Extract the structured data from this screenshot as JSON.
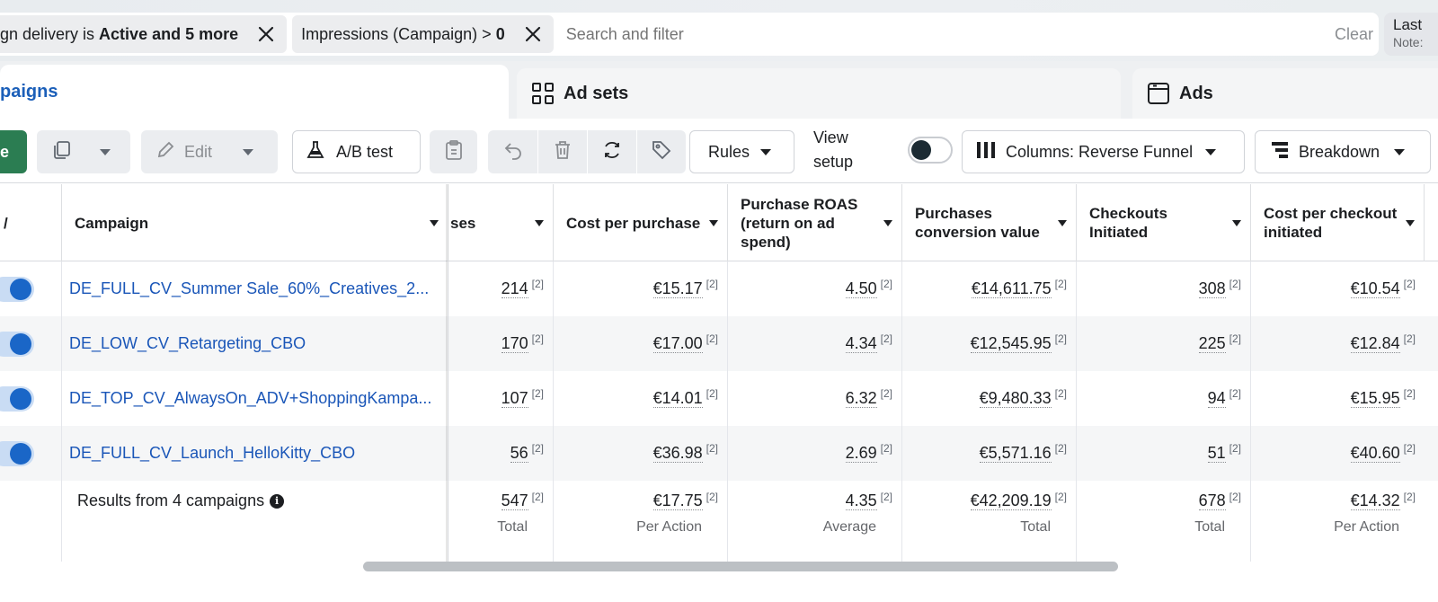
{
  "filters": {
    "chips": [
      {
        "prefix": "gn delivery is",
        "bold": "Active and 5 more"
      },
      {
        "prefix": "Impressions (Campaign) >",
        "bold": "0"
      }
    ],
    "search_placeholder": "Search and filter",
    "clear_label": "Clear",
    "date_line1": "Last",
    "date_line2": "Note:"
  },
  "tabs": [
    {
      "label": "paigns",
      "active": true,
      "icon": "campaigns-icon"
    },
    {
      "label": "Ad sets",
      "active": false,
      "icon": "ad-sets-grid-icon"
    },
    {
      "label": "Ads",
      "active": false,
      "icon": "ads-window-icon"
    }
  ],
  "toolbar": {
    "create_label": "e",
    "edit_label": "Edit",
    "ab_test_label": "A/B test",
    "rules_label": "Rules",
    "view_setup_label": "View setup",
    "columns_label": "Columns: Reverse Funnel",
    "breakdown_label": "Breakdown"
  },
  "table": {
    "first_col_header": "/",
    "headers": [
      "Campaign",
      "ses",
      "Cost per purchase",
      "Purchase ROAS (return on ad spend)",
      "Purchases conversion value",
      "Checkouts Initiated",
      "Cost per checkout initiated"
    ],
    "note_marker": "[2]",
    "rows": [
      {
        "campaign": "DE_FULL_CV_Summer Sale_60%_Creatives_2...",
        "values": [
          "214",
          "€15.17",
          "4.50",
          "€14,611.75",
          "308",
          "€10.54"
        ]
      },
      {
        "campaign": "DE_LOW_CV_Retargeting_CBO",
        "values": [
          "170",
          "€17.00",
          "4.34",
          "€12,545.95",
          "225",
          "€12.84"
        ]
      },
      {
        "campaign": "DE_TOP_CV_AlwaysOn_ADV+ShoppingKampa...",
        "values": [
          "107",
          "€14.01",
          "6.32",
          "€9,480.33",
          "94",
          "€15.95"
        ]
      },
      {
        "campaign": "DE_FULL_CV_Launch_HelloKitty_CBO",
        "values": [
          "56",
          "€36.98",
          "2.69",
          "€5,571.16",
          "51",
          "€40.60"
        ]
      }
    ],
    "summary": {
      "label": "Results from 4 campaigns",
      "values": [
        "547",
        "€17.75",
        "4.35",
        "€42,209.19",
        "678",
        "€14.32"
      ],
      "subs": [
        "Total",
        "Per Action",
        "Average",
        "Total",
        "Total",
        "Per Action"
      ]
    }
  }
}
